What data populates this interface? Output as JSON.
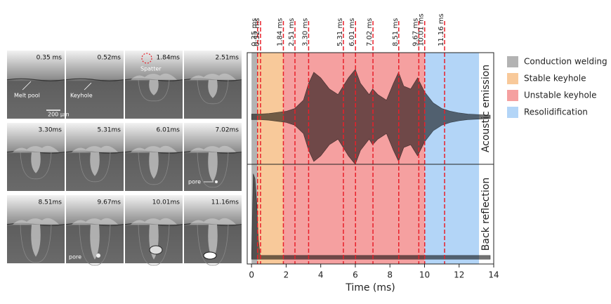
{
  "images": {
    "frames": [
      {
        "label": "0.35 ms"
      },
      {
        "label": "0.52ms"
      },
      {
        "label": "1.84ms"
      },
      {
        "label": "2.51ms"
      },
      {
        "label": "3.30ms"
      },
      {
        "label": "5.31ms"
      },
      {
        "label": "6.01ms"
      },
      {
        "label": "7.02ms"
      },
      {
        "label": "8.51ms"
      },
      {
        "label": "9.67ms"
      },
      {
        "label": "10.01ms"
      },
      {
        "label": "11.16ms"
      }
    ],
    "annotations": {
      "melt_pool": "Melt pool",
      "scale": "200 μm",
      "keyhole": "Keyhole",
      "spatter": "Spatter",
      "pore_a": "pore",
      "pore_b": "pore"
    }
  },
  "chart_data": {
    "type": "area",
    "xlabel": "Time (ms)",
    "xlim": [
      -0.25,
      14
    ],
    "xticks": [
      0,
      2,
      4,
      6,
      8,
      10,
      12,
      14
    ],
    "markers": [
      {
        "value": 0.35,
        "label": "0.35 ms"
      },
      {
        "value": 0.52,
        "label": "0.52 ms"
      },
      {
        "value": 1.84,
        "label": "1.84 ms"
      },
      {
        "value": 2.51,
        "label": "2.51 ms"
      },
      {
        "value": 3.3,
        "label": "3.30 ms"
      },
      {
        "value": 5.31,
        "label": "5.31 ms"
      },
      {
        "value": 6.01,
        "label": "6.01 ms"
      },
      {
        "value": 7.02,
        "label": "7.02 ms"
      },
      {
        "value": 8.51,
        "label": "8.51 ms"
      },
      {
        "value": 9.67,
        "label": "9.67 ms"
      },
      {
        "value": 10.01,
        "label": "10.01 ms"
      },
      {
        "value": 11.16,
        "label": "11.16 ms"
      }
    ],
    "marker_color": "#e8202a",
    "regions": [
      {
        "name": "Conduction welding",
        "color": "#b3b3b3",
        "start": 0,
        "end": 0.35
      },
      {
        "name": "Stable keyhole",
        "color": "#f8c99a",
        "start": 0.35,
        "end": 1.84
      },
      {
        "name": "Unstable keyhole",
        "color": "#f5a0a0",
        "start": 1.84,
        "end": 10.01
      },
      {
        "name": "Resolidification",
        "color": "#b3d5f7",
        "start": 10.01,
        "end": 13.15
      }
    ],
    "series": [
      {
        "name": "Acoustic emission",
        "color": "#000000",
        "ylim": [
          -0.85,
          1.15
        ],
        "symmetric": true,
        "x": [
          0,
          0.5,
          1.0,
          1.5,
          2.0,
          2.5,
          3.0,
          3.3,
          3.6,
          4.0,
          4.5,
          5.0,
          5.3,
          5.6,
          6.0,
          6.3,
          6.8,
          7.0,
          7.3,
          7.8,
          8.2,
          8.5,
          8.8,
          9.2,
          9.6,
          10.0,
          10.5,
          11.0,
          11.5,
          12.0,
          12.5,
          13.2,
          13.8
        ],
        "values": [
          0.05,
          0.05,
          0.06,
          0.08,
          0.1,
          0.15,
          0.3,
          0.6,
          0.8,
          0.7,
          0.5,
          0.4,
          0.55,
          0.7,
          0.85,
          0.6,
          0.4,
          0.5,
          0.4,
          0.3,
          0.6,
          0.8,
          0.55,
          0.5,
          0.7,
          0.45,
          0.25,
          0.15,
          0.1,
          0.07,
          0.05,
          0.04,
          0.03
        ]
      },
      {
        "name": "Back reflection",
        "color": "#000000",
        "ylim": [
          -0.05,
          1
        ],
        "symmetric": false,
        "x": [
          0,
          0.1,
          0.2,
          0.3,
          0.4,
          0.5,
          1.0,
          2.0,
          4.0,
          6.0,
          8.0,
          10.0,
          12.0,
          13.8
        ],
        "values": [
          0.05,
          0.9,
          0.85,
          0.6,
          0.2,
          0.04,
          0.04,
          0.04,
          0.04,
          0.04,
          0.04,
          0.04,
          0.04,
          0.04
        ]
      }
    ]
  }
}
